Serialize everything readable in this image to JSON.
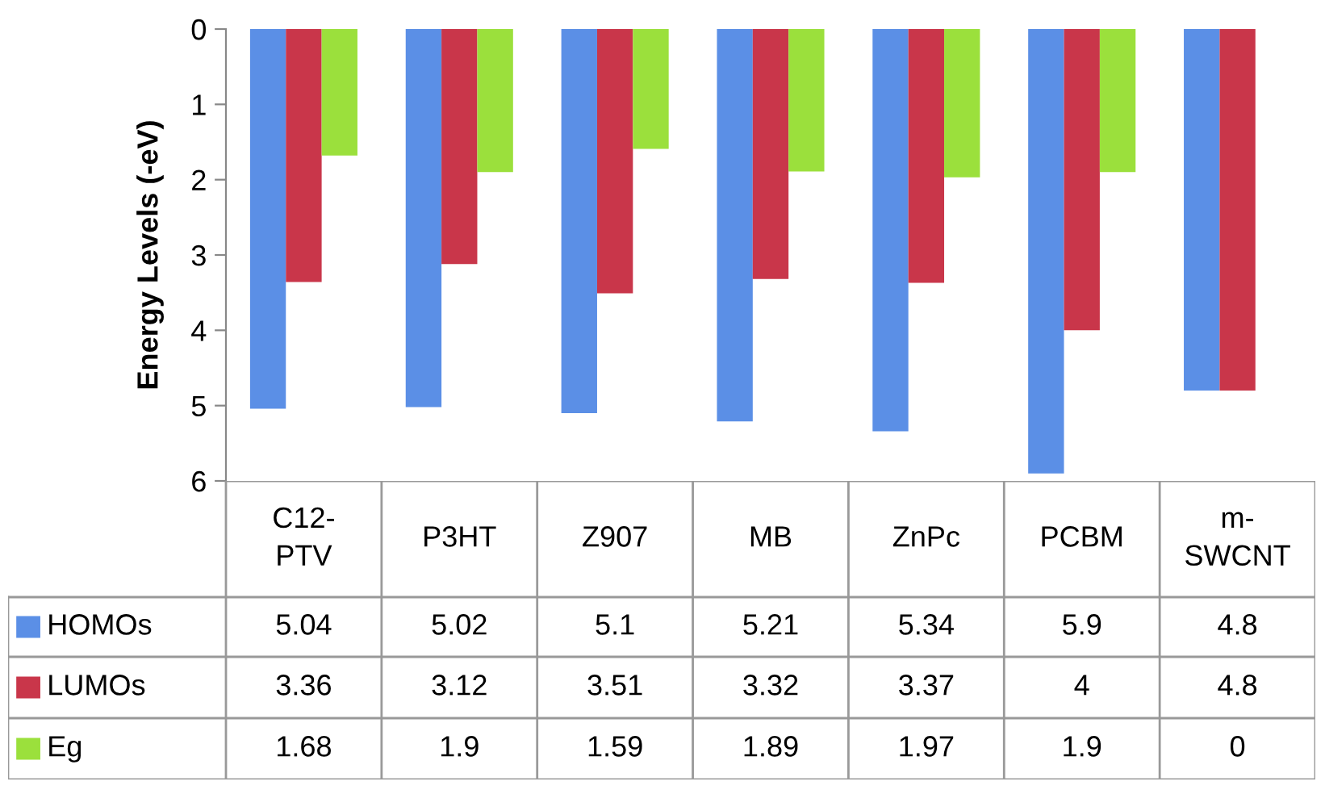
{
  "chart_data": {
    "type": "bar",
    "ylabel": "Energy Levels (-eV)",
    "categories": [
      "C12-PTV",
      "P3HT",
      "Z907",
      "MB",
      "ZnPc",
      "PCBM",
      "m-SWCNT"
    ],
    "series": [
      {
        "name": "HOMOs",
        "color": "#5b8fe6",
        "values": [
          5.04,
          5.02,
          5.1,
          5.21,
          5.34,
          5.9,
          4.8
        ]
      },
      {
        "name": "LUMOs",
        "color": "#c9364a",
        "values": [
          3.36,
          3.12,
          3.51,
          3.32,
          3.37,
          4,
          4.8
        ]
      },
      {
        "name": "Eg",
        "color": "#9be03c",
        "values": [
          1.68,
          1.9,
          1.59,
          1.89,
          1.97,
          1.9,
          0
        ]
      }
    ],
    "ylim": [
      6,
      0
    ],
    "yticks": [
      0,
      1,
      2,
      3,
      4,
      5,
      6
    ],
    "grid": false,
    "legend": "bottom left",
    "data_labels": true
  }
}
